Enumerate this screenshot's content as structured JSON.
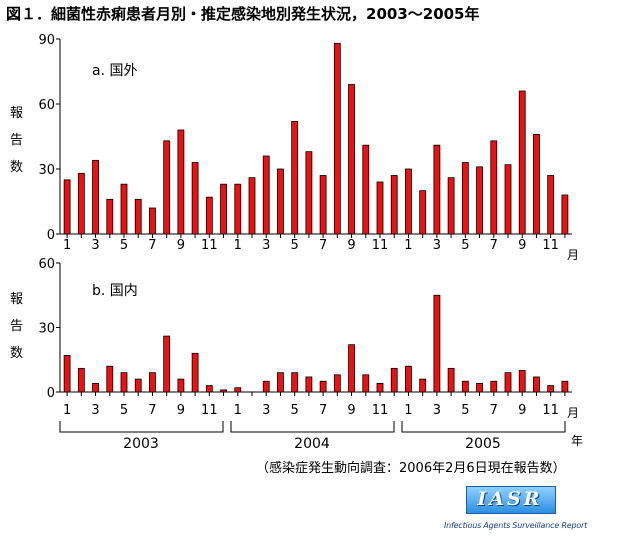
{
  "title": "図１．細菌性赤痢患者月別・推定感染地別発生状況，2003〜2005年",
  "y_label_chars": [
    "報",
    "告",
    "数"
  ],
  "month_unit": "月",
  "year_unit": "年",
  "years": [
    "2003",
    "2004",
    "2005"
  ],
  "note": "（感染症発生動向調査：2006年2月6日現在報告数）",
  "logo": {
    "text": "IASR",
    "subtitle": "Infectious Agents Surveillance Report"
  },
  "colors": {
    "bar": "#ee1111",
    "bar_border": "#000000"
  },
  "chart_data": [
    {
      "type": "bar",
      "title": "a. 国外",
      "ylabel": "報告数",
      "ylim": [
        0,
        90
      ],
      "yticks": [
        0,
        30,
        60,
        90
      ],
      "categories": [
        "1",
        "2",
        "3",
        "4",
        "5",
        "6",
        "7",
        "8",
        "9",
        "10",
        "11",
        "12",
        "1",
        "2",
        "3",
        "4",
        "5",
        "6",
        "7",
        "8",
        "9",
        "10",
        "11",
        "12",
        "1",
        "2",
        "3",
        "4",
        "5",
        "6",
        "7",
        "8",
        "9",
        "10",
        "11",
        "12"
      ],
      "xtick_labels": [
        "1",
        "3",
        "5",
        "7",
        "9",
        "11",
        "1",
        "3",
        "5",
        "7",
        "9",
        "11",
        "1",
        "3",
        "5",
        "7",
        "9",
        "11"
      ],
      "values": [
        25,
        28,
        34,
        16,
        23,
        16,
        12,
        43,
        48,
        33,
        17,
        23,
        23,
        26,
        36,
        30,
        52,
        38,
        27,
        88,
        69,
        41,
        24,
        27,
        30,
        20,
        41,
        26,
        33,
        31,
        43,
        32,
        66,
        46,
        27,
        18
      ]
    },
    {
      "type": "bar",
      "title": "b. 国内",
      "ylabel": "報告数",
      "ylim": [
        0,
        60
      ],
      "yticks": [
        0,
        30,
        60
      ],
      "categories": [
        "1",
        "2",
        "3",
        "4",
        "5",
        "6",
        "7",
        "8",
        "9",
        "10",
        "11",
        "12",
        "1",
        "2",
        "3",
        "4",
        "5",
        "6",
        "7",
        "8",
        "9",
        "10",
        "11",
        "12",
        "1",
        "2",
        "3",
        "4",
        "5",
        "6",
        "7",
        "8",
        "9",
        "10",
        "11",
        "12"
      ],
      "xtick_labels": [
        "1",
        "3",
        "5",
        "7",
        "9",
        "11",
        "1",
        "3",
        "5",
        "7",
        "9",
        "11",
        "1",
        "3",
        "5",
        "7",
        "9",
        "11"
      ],
      "values": [
        17,
        11,
        4,
        12,
        9,
        6,
        9,
        26,
        6,
        18,
        3,
        1,
        2,
        0,
        5,
        9,
        9,
        7,
        5,
        8,
        22,
        8,
        4,
        11,
        12,
        6,
        45,
        11,
        5,
        4,
        5,
        9,
        10,
        7,
        3,
        5
      ]
    }
  ]
}
